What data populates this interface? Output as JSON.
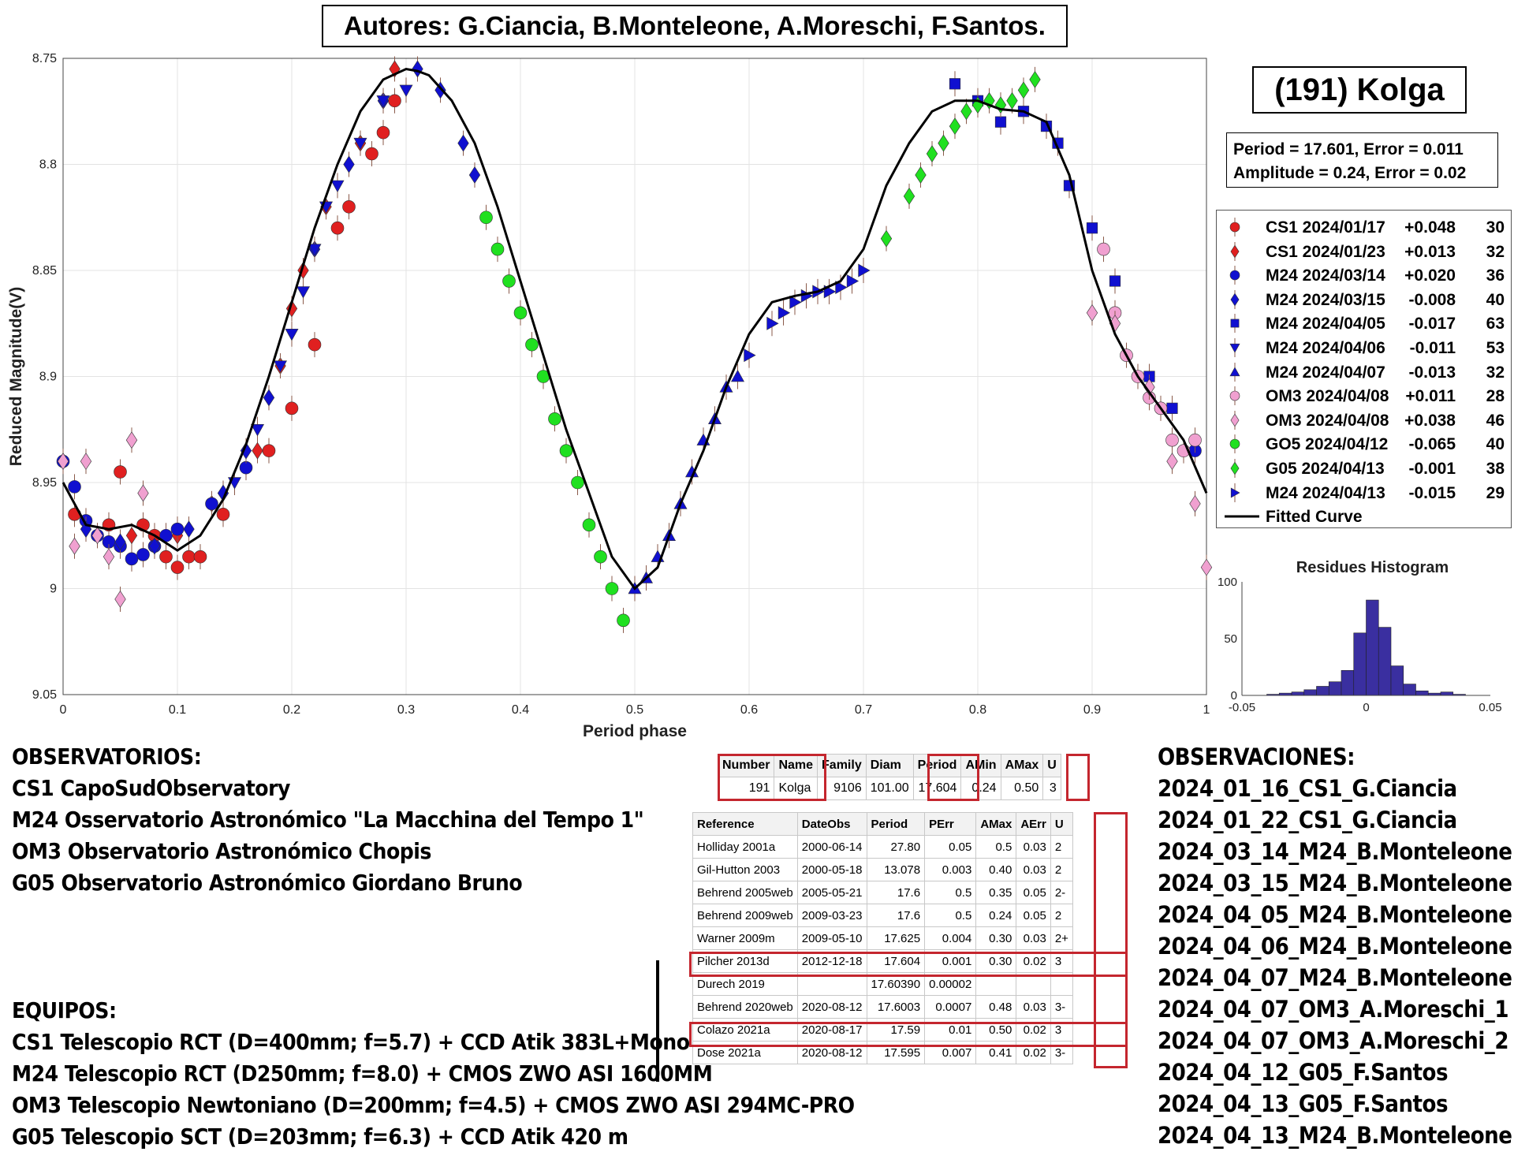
{
  "authors": "Autores: G.Ciancia, B.Monteleone, A.Moreschi, F.Santos.",
  "object_title": "(191) Kolga",
  "fit": {
    "line1": "Period =  17.601, Error = 0.011",
    "line2": "Amplitude = 0.24, Error = 0.02"
  },
  "legend": [
    {
      "name": "CS1 2024/01/17",
      "offset": "+0.048",
      "count": "30",
      "marker": "circle",
      "color": "#e02020"
    },
    {
      "name": "CS1 2024/01/23",
      "offset": "+0.013",
      "count": "32",
      "marker": "diamond",
      "color": "#e02020"
    },
    {
      "name": "M24 2024/03/14",
      "offset": "+0.020",
      "count": "36",
      "marker": "circle",
      "color": "#1010d0"
    },
    {
      "name": "M24 2024/03/15",
      "offset": "-0.008",
      "count": "40",
      "marker": "diamond",
      "color": "#1010d0"
    },
    {
      "name": "M24 2024/04/05",
      "offset": "-0.017",
      "count": "63",
      "marker": "square",
      "color": "#1010d0"
    },
    {
      "name": "M24 2024/04/06",
      "offset": "-0.011",
      "count": "53",
      "marker": "triangle-down",
      "color": "#1010d0"
    },
    {
      "name": "M24 2024/04/07",
      "offset": "-0.013",
      "count": "32",
      "marker": "triangle-up",
      "color": "#1010d0"
    },
    {
      "name": "OM3 2024/04/08",
      "offset": "+0.011",
      "count": "28",
      "marker": "circle",
      "color": "#f0a0d0"
    },
    {
      "name": "OM3 2024/04/08",
      "offset": "+0.038",
      "count": "46",
      "marker": "diamond",
      "color": "#f0a0d0"
    },
    {
      "name": "GO5 2024/04/12",
      "offset": "-0.065",
      "count": "40",
      "marker": "circle",
      "color": "#20e020"
    },
    {
      "name": "G05 2024/04/13",
      "offset": "-0.001",
      "count": "38",
      "marker": "diamond",
      "color": "#20e020"
    },
    {
      "name": "M24 2024/04/13",
      "offset": "-0.015",
      "count": "29",
      "marker": "triangle-right",
      "color": "#1010d0"
    },
    {
      "name": "Fitted Curve",
      "offset": "",
      "count": "",
      "marker": "line",
      "color": "#000000"
    }
  ],
  "chart_data": [
    {
      "type": "scatter",
      "title": "",
      "xlabel": "Period phase",
      "ylabel": "Reduced Magnitude(V)",
      "xlim": [
        0,
        1
      ],
      "ylim": [
        9.05,
        8.75
      ],
      "y_inverted": true,
      "grid": true,
      "xticks": [
        "0",
        "0.1",
        "0.2",
        "0.3",
        "0.4",
        "0.5",
        "0.6",
        "0.7",
        "0.8",
        "0.9",
        "1"
      ],
      "yticks": [
        "8.75",
        "8.8",
        "8.85",
        "8.9",
        "8.95",
        "9",
        "9.05"
      ],
      "fitted_curve": {
        "name": "Fitted Curve",
        "x": [
          0,
          0.02,
          0.04,
          0.06,
          0.08,
          0.1,
          0.12,
          0.14,
          0.16,
          0.18,
          0.2,
          0.22,
          0.24,
          0.26,
          0.28,
          0.3,
          0.31,
          0.32,
          0.34,
          0.36,
          0.38,
          0.4,
          0.42,
          0.44,
          0.46,
          0.48,
          0.5,
          0.52,
          0.54,
          0.56,
          0.58,
          0.6,
          0.62,
          0.64,
          0.66,
          0.68,
          0.7,
          0.72,
          0.74,
          0.76,
          0.78,
          0.8,
          0.82,
          0.84,
          0.86,
          0.88,
          0.9,
          0.92,
          0.94,
          0.96,
          0.98,
          1
        ],
        "y": [
          8.95,
          8.97,
          8.972,
          8.97,
          8.975,
          8.982,
          8.975,
          8.958,
          8.932,
          8.9,
          8.865,
          8.83,
          8.8,
          8.775,
          8.76,
          8.755,
          8.756,
          8.758,
          8.77,
          8.79,
          8.82,
          8.855,
          8.89,
          8.925,
          8.955,
          8.985,
          9.0,
          8.99,
          8.96,
          8.935,
          8.905,
          8.88,
          8.865,
          8.862,
          8.86,
          8.855,
          8.84,
          8.81,
          8.79,
          8.775,
          8.77,
          8.77,
          8.774,
          8.775,
          8.78,
          8.805,
          8.85,
          8.88,
          8.9,
          8.915,
          8.93,
          8.955
        ]
      },
      "series": [
        {
          "name": "CS1 2024/01/17",
          "x": [
            0.01,
            0.04,
            0.05,
            0.07,
            0.08,
            0.09,
            0.1,
            0.11,
            0.12,
            0.14,
            0.18,
            0.2,
            0.22,
            0.24,
            0.25,
            0.27,
            0.28,
            0.29
          ],
          "y": [
            8.965,
            8.97,
            8.945,
            8.97,
            8.975,
            8.985,
            8.99,
            8.985,
            8.985,
            8.965,
            8.935,
            8.915,
            8.885,
            8.83,
            8.82,
            8.795,
            8.785,
            8.77
          ]
        },
        {
          "name": "CS1 2024/01/23",
          "x": [
            0.0,
            0.06,
            0.1,
            0.13,
            0.17,
            0.19,
            0.2,
            0.21,
            0.23,
            0.26,
            0.28,
            0.29
          ],
          "y": [
            8.94,
            8.975,
            8.975,
            8.96,
            8.935,
            8.895,
            8.868,
            8.85,
            8.82,
            8.79,
            8.77,
            8.755
          ]
        },
        {
          "name": "M24 2024/03/14",
          "x": [
            0.0,
            0.01,
            0.02,
            0.03,
            0.04,
            0.05,
            0.06,
            0.07,
            0.08,
            0.09,
            0.1,
            0.13,
            0.16,
            0.99
          ],
          "y": [
            8.94,
            8.952,
            8.968,
            8.975,
            8.978,
            8.98,
            8.986,
            8.984,
            8.98,
            8.975,
            8.972,
            8.96,
            8.943,
            8.935
          ]
        },
        {
          "name": "M24 2024/03/15",
          "x": [
            0.02,
            0.05,
            0.08,
            0.11,
            0.14,
            0.16,
            0.18,
            0.22,
            0.25,
            0.28,
            0.31,
            0.33,
            0.35,
            0.36
          ],
          "y": [
            8.972,
            8.978,
            8.98,
            8.972,
            8.955,
            8.935,
            8.91,
            8.84,
            8.8,
            8.77,
            8.755,
            8.765,
            8.79,
            8.805
          ]
        },
        {
          "name": "M24 2024/04/05",
          "x": [
            0.78,
            0.8,
            0.82,
            0.84,
            0.86,
            0.87,
            0.88,
            0.9,
            0.92,
            0.95,
            0.97
          ],
          "y": [
            8.762,
            8.77,
            8.78,
            8.775,
            8.782,
            8.79,
            8.81,
            8.83,
            8.855,
            8.9,
            8.915
          ]
        },
        {
          "name": "M24 2024/04/06",
          "x": [
            0.15,
            0.17,
            0.19,
            0.2,
            0.21,
            0.22,
            0.23,
            0.24,
            0.26,
            0.28,
            0.3
          ],
          "y": [
            8.95,
            8.925,
            8.895,
            8.88,
            8.86,
            8.84,
            8.82,
            8.81,
            8.79,
            8.77,
            8.765
          ]
        },
        {
          "name": "M24 2024/04/07",
          "x": [
            0.5,
            0.51,
            0.52,
            0.53,
            0.54,
            0.55,
            0.56,
            0.57,
            0.58,
            0.59
          ],
          "y": [
            9.0,
            8.995,
            8.985,
            8.975,
            8.96,
            8.945,
            8.93,
            8.92,
            8.905,
            8.9
          ]
        },
        {
          "name": "OM3 2024/04/08",
          "x": [
            0.91,
            0.92,
            0.93,
            0.94,
            0.95,
            0.96,
            0.97,
            0.98,
            0.99
          ],
          "y": [
            8.84,
            8.87,
            8.89,
            8.9,
            8.91,
            8.915,
            8.93,
            8.935,
            8.93
          ]
        },
        {
          "name": "OM3 2024/04/08",
          "x": [
            0.0,
            0.01,
            0.02,
            0.03,
            0.04,
            0.05,
            0.06,
            0.07,
            0.9,
            0.92,
            0.95,
            0.97,
            0.99,
            1.0
          ],
          "y": [
            8.94,
            8.98,
            8.94,
            8.975,
            8.985,
            9.005,
            8.93,
            8.955,
            8.87,
            8.875,
            8.905,
            8.94,
            8.96,
            8.99
          ]
        },
        {
          "name": "GO5 2024/04/12",
          "x": [
            0.37,
            0.38,
            0.39,
            0.4,
            0.41,
            0.42,
            0.43,
            0.44,
            0.45,
            0.46,
            0.47,
            0.48,
            0.49
          ],
          "y": [
            8.825,
            8.84,
            8.855,
            8.87,
            8.885,
            8.9,
            8.92,
            8.935,
            8.95,
            8.97,
            8.985,
            9.0,
            9.015
          ]
        },
        {
          "name": "G05 2024/04/13",
          "x": [
            0.72,
            0.74,
            0.75,
            0.76,
            0.77,
            0.78,
            0.79,
            0.8,
            0.81,
            0.82,
            0.83,
            0.84,
            0.85
          ],
          "y": [
            8.835,
            8.815,
            8.805,
            8.795,
            8.79,
            8.782,
            8.775,
            8.772,
            8.77,
            8.772,
            8.77,
            8.765,
            8.76
          ]
        },
        {
          "name": "M24 2024/04/13",
          "x": [
            0.6,
            0.62,
            0.63,
            0.64,
            0.65,
            0.66,
            0.67,
            0.68,
            0.69,
            0.7
          ],
          "y": [
            8.89,
            8.875,
            8.87,
            8.865,
            8.862,
            8.86,
            8.86,
            8.858,
            8.855,
            8.85
          ]
        }
      ]
    },
    {
      "type": "bar",
      "title": "Residues Histogram",
      "xlim": [
        -0.05,
        0.05
      ],
      "ylim": [
        0,
        100
      ],
      "xticks": [
        "-0.05",
        "0",
        "0.05"
      ],
      "yticks": [
        "0",
        "50",
        "100"
      ],
      "bin_centers": [
        -0.0375,
        -0.0325,
        -0.0275,
        -0.0225,
        -0.0175,
        -0.0125,
        -0.0075,
        -0.0025,
        0.0025,
        0.0075,
        0.0125,
        0.0175,
        0.0225,
        0.0275,
        0.0325,
        0.0375
      ],
      "values": [
        1,
        2,
        3,
        5,
        8,
        12,
        22,
        55,
        84,
        60,
        26,
        10,
        4,
        2,
        3,
        1
      ]
    }
  ],
  "observatorios": {
    "heading": "OBSERVATORIOS:",
    "lines": [
      "CS1 CapoSudObservatory",
      "M24 Osservatorio Astronómico \"La Macchina del Tempo 1\"",
      "OM3 Observatorio Astronómico Chopis",
      "G05 Observatorio Astronómico Giordano Bruno"
    ]
  },
  "equipos": {
    "heading": "EQUIPOS:",
    "lines": [
      "CS1 Telescopio RCT (D=400mm; f=5.7) + CCD Atik 383L+Mono",
      "M24 Telescopio RCT (D250mm; f=8.0) + CMOS ZWO ASI 1600MM",
      "OM3 Telescopio Newtoniano (D=200mm; f=4.5) + CMOS ZWO ASI 294MC-PRO",
      "G05 Telescopio SCT (D=203mm; f=6.3) + CCD Atik 420 m"
    ]
  },
  "observaciones": {
    "heading": "OBSERVACIONES:",
    "lines": [
      "2024_01_16_CS1_G.Ciancia",
      "2024_01_22_CS1_G.Ciancia",
      "2024_03_14_M24_B.Monteleone",
      "2024_03_15_M24_B.Monteleone",
      "2024_04_05_M24_B.Monteleone",
      "2024_04_06_M24_B.Monteleone",
      "2024_04_07_M24_B.Monteleone",
      "2024_04_07_OM3_A.Moreschi_1",
      "2024_04_07_OM3_A.Moreschi_2",
      "2024_04_12_G05_F.Santos",
      "2024_04_13_G05_F.Santos",
      "2024_04_13_M24_B.Monteleone"
    ]
  },
  "summary_table": {
    "headers": [
      "Number",
      "Name",
      "Family",
      "Diam",
      "Period",
      "AMin",
      "AMax",
      "U"
    ],
    "row": [
      "191",
      "Kolga",
      "9106",
      "101.00",
      "17.604",
      "0.24",
      "0.50",
      "3"
    ]
  },
  "ref_table": {
    "headers": [
      "Reference",
      "DateObs",
      "Period",
      "PErr",
      "AMax",
      "AErr",
      "U"
    ],
    "rows": [
      [
        "Holliday 2001a",
        "2000-06-14",
        "27.80",
        "0.05",
        "0.5",
        "0.03",
        "2"
      ],
      [
        "Gil-Hutton 2003",
        "2000-05-18",
        "13.078",
        "0.003",
        "0.40",
        "0.03",
        "2"
      ],
      [
        "Behrend 2005web",
        "2005-05-21",
        "17.6",
        "0.5",
        "0.35",
        "0.05",
        "2-"
      ],
      [
        "Behrend 2009web",
        "2009-03-23",
        "17.6",
        "0.5",
        "0.24",
        "0.05",
        "2"
      ],
      [
        "Warner 2009m",
        "2009-05-10",
        "17.625",
        "0.004",
        "0.30",
        "0.03",
        "2+"
      ],
      [
        "Pilcher 2013d",
        "2012-12-18",
        "17.604",
        "0.001",
        "0.30",
        "0.02",
        "3"
      ],
      [
        "Durech 2019",
        "",
        "17.60390",
        "0.00002",
        "",
        "",
        ""
      ],
      [
        "Behrend 2020web",
        "2020-08-12",
        "17.6003",
        "0.0007",
        "0.48",
        "0.03",
        "3-"
      ],
      [
        "Colazo 2021a",
        "2020-08-17",
        "17.59",
        "0.01",
        "0.50",
        "0.02",
        "3"
      ],
      [
        "Dose 2021a",
        "2020-08-12",
        "17.595",
        "0.007",
        "0.41",
        "0.02",
        "3-"
      ]
    ]
  }
}
